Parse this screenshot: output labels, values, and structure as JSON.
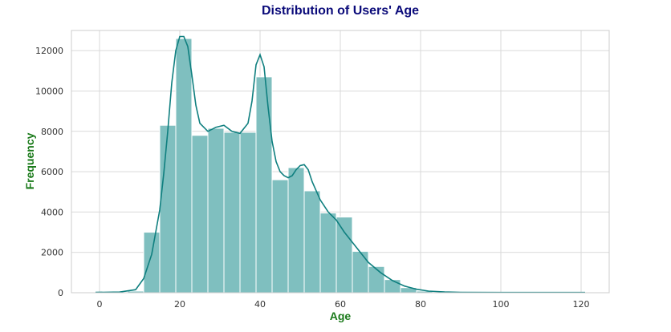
{
  "chart_data": {
    "type": "bar",
    "title": "Distribution of Users' Age",
    "xlabel": "Age",
    "ylabel": "Frequency",
    "xlim": [
      -7,
      127
    ],
    "ylim": [
      0,
      13000
    ],
    "x_ticks": [
      0,
      20,
      40,
      60,
      80,
      100,
      120
    ],
    "y_ticks": [
      0,
      2000,
      4000,
      6000,
      8000,
      10000,
      12000
    ],
    "grid": true,
    "bar_color": "#7fbfbf",
    "kde_color": "#0f7f7f",
    "bins": [
      {
        "x0": -1,
        "x1": 3,
        "value": 20
      },
      {
        "x0": 3,
        "x1": 7,
        "value": 30
      },
      {
        "x0": 7,
        "x1": 11,
        "value": 80
      },
      {
        "x0": 11,
        "x1": 15,
        "value": 3000
      },
      {
        "x0": 15,
        "x1": 19,
        "value": 8300
      },
      {
        "x0": 19,
        "x1": 23,
        "value": 12600
      },
      {
        "x0": 23,
        "x1": 27,
        "value": 7800
      },
      {
        "x0": 27,
        "x1": 31,
        "value": 8150
      },
      {
        "x0": 31,
        "x1": 35,
        "value": 7950
      },
      {
        "x0": 35,
        "x1": 39,
        "value": 7950
      },
      {
        "x0": 39,
        "x1": 43,
        "value": 10700
      },
      {
        "x0": 43,
        "x1": 47,
        "value": 5600
      },
      {
        "x0": 47,
        "x1": 51,
        "value": 6200
      },
      {
        "x0": 51,
        "x1": 55,
        "value": 5050
      },
      {
        "x0": 55,
        "x1": 59,
        "value": 3950
      },
      {
        "x0": 59,
        "x1": 63,
        "value": 3750
      },
      {
        "x0": 63,
        "x1": 67,
        "value": 2050
      },
      {
        "x0": 67,
        "x1": 71,
        "value": 1300
      },
      {
        "x0": 71,
        "x1": 75,
        "value": 650
      },
      {
        "x0": 75,
        "x1": 79,
        "value": 250
      },
      {
        "x0": 79,
        "x1": 83,
        "value": 80
      },
      {
        "x0": 83,
        "x1": 87,
        "value": 30
      }
    ],
    "kde": {
      "x": [
        -1,
        5,
        9,
        11,
        13,
        15,
        16,
        17,
        18,
        19,
        20,
        21,
        22,
        23,
        24,
        25,
        27,
        29,
        31,
        33,
        35,
        37,
        38,
        39,
        40,
        41,
        42,
        43,
        44,
        45,
        46,
        47,
        48,
        49,
        50,
        51,
        52,
        53,
        55,
        57,
        59,
        61,
        63,
        65,
        67,
        70,
        73,
        76,
        79,
        82,
        86,
        90,
        100,
        110,
        121
      ],
      "y": [
        15,
        30,
        150,
        700,
        1900,
        4100,
        5900,
        8000,
        10400,
        12000,
        12700,
        12700,
        12200,
        10800,
        9300,
        8400,
        8000,
        8200,
        8300,
        8000,
        7900,
        8400,
        9500,
        11300,
        11800,
        11200,
        9200,
        7500,
        6500,
        6000,
        5800,
        5700,
        5800,
        6100,
        6300,
        6350,
        6100,
        5500,
        4600,
        4000,
        3600,
        3000,
        2500,
        2000,
        1500,
        1000,
        600,
        330,
        170,
        80,
        35,
        20,
        12,
        10,
        10
      ]
    }
  }
}
